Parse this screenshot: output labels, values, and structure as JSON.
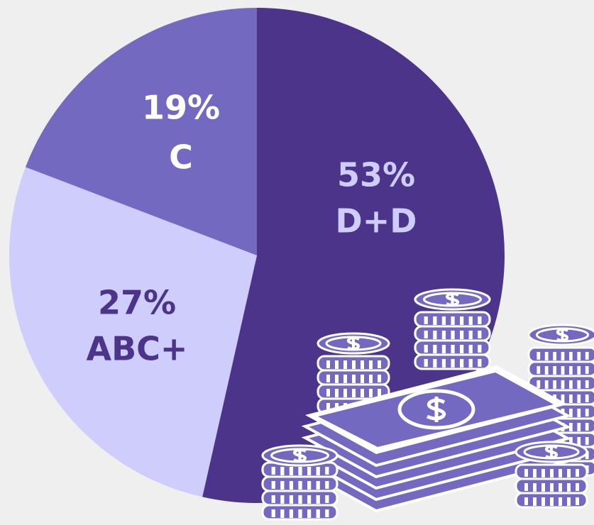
{
  "chart_data": {
    "type": "pie",
    "categories": [
      "D+D",
      "ABC+",
      "C"
    ],
    "values": [
      53,
      27,
      19
    ],
    "value_labels": [
      "53%",
      "27%",
      "19%"
    ],
    "colors": [
      "#4b3489",
      "#cfcdfb",
      "#7369c0"
    ],
    "label_colors": [
      "#cfcdfb",
      "#4b3489",
      "#ffffff"
    ]
  }
}
